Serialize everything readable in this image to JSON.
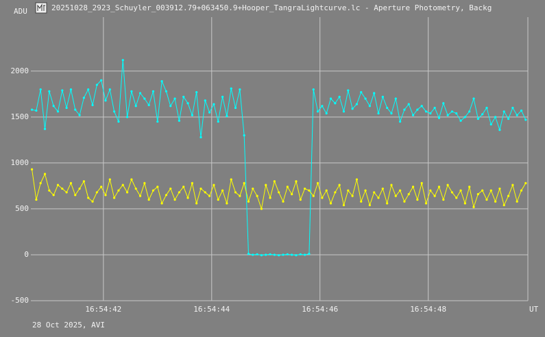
{
  "window_title": "20251028_2923_Schuyler_003912.79+063450.9+Hooper_TangraLightcurve.lc - Aperture Photometry, Backg",
  "chart_data": {
    "type": "line",
    "y_label": "ADU",
    "x_label": "UT",
    "footer": "28 Oct 2025, AVI",
    "grid": true,
    "xlim": [
      40.66,
      49.84
    ],
    "ylim": [
      -500,
      2640
    ],
    "xticks": [
      {
        "value": 42,
        "label": "16:54:42"
      },
      {
        "value": 44,
        "label": "16:54:44"
      },
      {
        "value": 46,
        "label": "16:54:46"
      },
      {
        "value": 48,
        "label": "16:54:48"
      }
    ],
    "yticks": [
      -500,
      0,
      500,
      1000,
      1500,
      2000
    ],
    "x": [
      40.68,
      40.76,
      40.84,
      40.92,
      41,
      41.08,
      41.16,
      41.24,
      41.32,
      41.4,
      41.48,
      41.56,
      41.64,
      41.72,
      41.8,
      41.88,
      41.96,
      42.04,
      42.12,
      42.2,
      42.28,
      42.36,
      42.44,
      42.52,
      42.6,
      42.68,
      42.76,
      42.84,
      42.92,
      43,
      43.08,
      43.16,
      43.24,
      43.32,
      43.4,
      43.48,
      43.56,
      43.64,
      43.72,
      43.8,
      43.88,
      43.96,
      44.04,
      44.12,
      44.2,
      44.28,
      44.36,
      44.44,
      44.52,
      44.6,
      44.68,
      44.76,
      44.84,
      44.92,
      45,
      45.08,
      45.16,
      45.24,
      45.32,
      45.4,
      45.48,
      45.56,
      45.64,
      45.72,
      45.8,
      45.88,
      45.96,
      46.04,
      46.12,
      46.2,
      46.28,
      46.36,
      46.44,
      46.52,
      46.6,
      46.68,
      46.76,
      46.84,
      46.92,
      47,
      47.08,
      47.16,
      47.24,
      47.32,
      47.4,
      47.48,
      47.56,
      47.64,
      47.72,
      47.8,
      47.88,
      47.96,
      48.04,
      48.12,
      48.2,
      48.28,
      48.36,
      48.44,
      48.52,
      48.6,
      48.68,
      48.76,
      48.84,
      48.92,
      49,
      49.08,
      49.16,
      49.24,
      49.32,
      49.4,
      49.48,
      49.56,
      49.64,
      49.72,
      49.8
    ],
    "series": [
      {
        "color": "#00ffff",
        "values": [
          1580,
          1570,
          1800,
          1370,
          1780,
          1620,
          1560,
          1790,
          1600,
          1800,
          1580,
          1520,
          1710,
          1800,
          1630,
          1850,
          1900,
          1680,
          1800,
          1560,
          1450,
          2120,
          1500,
          1780,
          1620,
          1760,
          1700,
          1630,
          1780,
          1450,
          1890,
          1780,
          1620,
          1700,
          1460,
          1720,
          1650,
          1520,
          1770,
          1280,
          1680,
          1550,
          1640,
          1450,
          1720,
          1510,
          1810,
          1600,
          1800,
          1300,
          10,
          0,
          5,
          -5,
          0,
          5,
          0,
          -5,
          0,
          5,
          0,
          -5,
          5,
          0,
          10,
          1800,
          1560,
          1620,
          1540,
          1700,
          1650,
          1720,
          1560,
          1790,
          1590,
          1640,
          1770,
          1700,
          1620,
          1760,
          1540,
          1720,
          1600,
          1540,
          1700,
          1450,
          1580,
          1640,
          1520,
          1580,
          1620,
          1560,
          1540,
          1600,
          1490,
          1650,
          1520,
          1560,
          1540,
          1460,
          1500,
          1560,
          1700,
          1480,
          1530,
          1600,
          1420,
          1500,
          1360,
          1560,
          1480,
          1600,
          1520,
          1570,
          1470
        ]
      },
      {
        "color": "#ffff00",
        "values": [
          930,
          600,
          780,
          880,
          700,
          650,
          760,
          720,
          680,
          780,
          650,
          720,
          800,
          620,
          580,
          680,
          740,
          650,
          820,
          620,
          700,
          760,
          680,
          820,
          720,
          640,
          780,
          600,
          700,
          740,
          560,
          650,
          720,
          600,
          680,
          740,
          620,
          780,
          560,
          720,
          680,
          640,
          760,
          600,
          700,
          560,
          820,
          680,
          640,
          780,
          580,
          720,
          640,
          500,
          760,
          620,
          800,
          680,
          580,
          740,
          660,
          800,
          600,
          720,
          700,
          640,
          780,
          620,
          700,
          560,
          680,
          760,
          540,
          700,
          640,
          820,
          580,
          700,
          540,
          680,
          620,
          720,
          560,
          760,
          640,
          700,
          580,
          660,
          740,
          600,
          780,
          560,
          700,
          640,
          740,
          600,
          760,
          680,
          620,
          700,
          560,
          740,
          520,
          660,
          700,
          600,
          700,
          580,
          720,
          540,
          640,
          760,
          580,
          700,
          780
        ]
      }
    ]
  }
}
